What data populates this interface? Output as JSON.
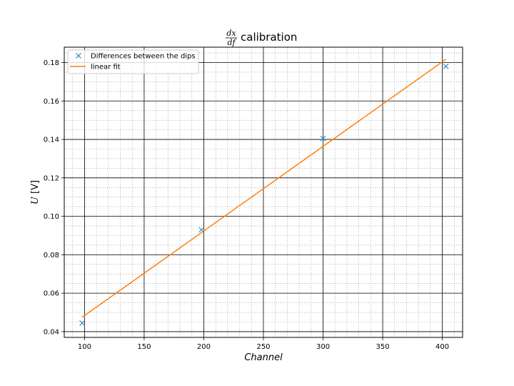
{
  "chart_data": {
    "type": "scatter",
    "title": {
      "frac_num": "dx",
      "frac_den": "df",
      "text": "calibration"
    },
    "xlabel": "Channel",
    "ylabel": "U [V]",
    "xlim": [
      83,
      417
    ],
    "ylim": [
      0.037,
      0.188
    ],
    "x_major_ticks": [
      100,
      150,
      200,
      250,
      300,
      350,
      400
    ],
    "y_major_ticks": [
      0.04,
      0.06,
      0.08,
      0.1,
      0.12,
      0.14,
      0.16,
      0.18
    ],
    "x_tick_labels": [
      "100",
      "150",
      "200",
      "250",
      "300",
      "350",
      "400"
    ],
    "y_tick_labels": [
      "0.04",
      "0.06",
      "0.08",
      "0.10",
      "0.12",
      "0.14",
      "0.16",
      "0.18"
    ],
    "x_minor_step": 10,
    "y_minor_step": 0.005,
    "grid": true,
    "legend_position": "top-left",
    "series": [
      {
        "name": "Differences between the dips",
        "kind": "scatter",
        "marker": "x",
        "color": "#1f77b4",
        "x": [
          98,
          198,
          300,
          403
        ],
        "y": [
          0.0445,
          0.093,
          0.1405,
          0.178
        ]
      },
      {
        "name": "linear fit",
        "kind": "line",
        "color": "#ff7f0e",
        "x": [
          98,
          403
        ],
        "y": [
          0.0475,
          0.1817
        ]
      }
    ]
  }
}
